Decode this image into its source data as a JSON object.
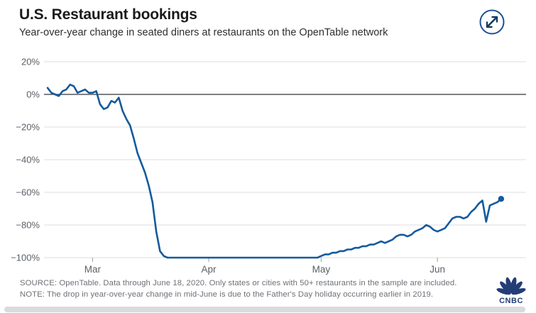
{
  "header": {
    "title": "U.S. Restaurant bookings",
    "subtitle": "Year-over-year change in seated diners at restaurants on the OpenTable network"
  },
  "chart_data": {
    "type": "line",
    "title": "U.S. Restaurant bookings",
    "subtitle": "Year-over-year change in seated diners at restaurants on the OpenTable network",
    "xlabel": "",
    "ylabel": "",
    "ylim": [
      -100,
      20
    ],
    "grid": true,
    "legend_position": "none",
    "y_ticks": [
      "20%",
      "0%",
      "−20%",
      "−40%",
      "−60%",
      "−80%",
      "−100%"
    ],
    "y_tick_values": [
      20,
      0,
      -20,
      -40,
      -60,
      -80,
      -100
    ],
    "x_ticks": [
      "Mar",
      "Apr",
      "May",
      "Jun"
    ],
    "x_range": [
      "Feb 18",
      "Jun 18"
    ],
    "line_color": "#155a9e",
    "grid_color": "#dcdcdc",
    "zero_line_color": "#55565a",
    "axis_text_color": "#5a5f66",
    "end_point_marker": true,
    "series": [
      {
        "name": "YoY change in seated diners (%)",
        "dates": [
          "Feb 18",
          "Feb 19",
          "Feb 20",
          "Feb 21",
          "Feb 22",
          "Feb 23",
          "Feb 24",
          "Feb 25",
          "Feb 26",
          "Feb 27",
          "Feb 28",
          "Feb 29",
          "Mar 1",
          "Mar 2",
          "Mar 3",
          "Mar 4",
          "Mar 5",
          "Mar 6",
          "Mar 7",
          "Mar 8",
          "Mar 9",
          "Mar 10",
          "Mar 11",
          "Mar 12",
          "Mar 13",
          "Mar 14",
          "Mar 15",
          "Mar 16",
          "Mar 17",
          "Mar 18",
          "Mar 19",
          "Mar 20",
          "Mar 21",
          "Mar 22",
          "Mar 23",
          "Mar 24",
          "Mar 25",
          "Mar 26",
          "Mar 27",
          "Mar 28",
          "Mar 29",
          "Mar 30",
          "Mar 31",
          "Apr 1",
          "Apr 2",
          "Apr 3",
          "Apr 4",
          "Apr 5",
          "Apr 6",
          "Apr 7",
          "Apr 8",
          "Apr 9",
          "Apr 10",
          "Apr 11",
          "Apr 12",
          "Apr 13",
          "Apr 14",
          "Apr 15",
          "Apr 16",
          "Apr 17",
          "Apr 18",
          "Apr 19",
          "Apr 20",
          "Apr 21",
          "Apr 22",
          "Apr 23",
          "Apr 24",
          "Apr 25",
          "Apr 26",
          "Apr 27",
          "Apr 28",
          "Apr 29",
          "Apr 30",
          "May 1",
          "May 2",
          "May 3",
          "May 4",
          "May 5",
          "May 6",
          "May 7",
          "May 8",
          "May 9",
          "May 10",
          "May 11",
          "May 12",
          "May 13",
          "May 14",
          "May 15",
          "May 16",
          "May 17",
          "May 18",
          "May 19",
          "May 20",
          "May 21",
          "May 22",
          "May 23",
          "May 24",
          "May 25",
          "May 26",
          "May 27",
          "May 28",
          "May 29",
          "May 30",
          "May 31",
          "Jun 1",
          "Jun 2",
          "Jun 3",
          "Jun 4",
          "Jun 5",
          "Jun 6",
          "Jun 7",
          "Jun 8",
          "Jun 9",
          "Jun 10",
          "Jun 11",
          "Jun 12",
          "Jun 13",
          "Jun 14",
          "Jun 15",
          "Jun 16",
          "Jun 17",
          "Jun 18"
        ],
        "values": [
          4,
          1,
          0,
          -1,
          2,
          3,
          6,
          5,
          1,
          2,
          3,
          1,
          1,
          2,
          -6,
          -9,
          -8,
          -4,
          -5,
          -2,
          -10,
          -15,
          -19,
          -27,
          -36,
          -42,
          -48,
          -56,
          -66,
          -84,
          -96,
          -99,
          -100,
          -100,
          -100,
          -100,
          -100,
          -100,
          -100,
          -100,
          -100,
          -100,
          -100,
          -100,
          -100,
          -100,
          -100,
          -100,
          -100,
          -100,
          -100,
          -100,
          -100,
          -100,
          -100,
          -100,
          -100,
          -100,
          -100,
          -100,
          -100,
          -100,
          -100,
          -100,
          -100,
          -100,
          -100,
          -100,
          -100,
          -100,
          -100,
          -100,
          -100,
          -99,
          -98,
          -98,
          -97,
          -97,
          -96,
          -96,
          -95,
          -95,
          -94,
          -94,
          -93,
          -93,
          -92,
          -92,
          -91,
          -90,
          -91,
          -90,
          -89,
          -87,
          -86,
          -86,
          -87,
          -86,
          -84,
          -83,
          -82,
          -80,
          -81,
          -83,
          -84,
          -83,
          -82,
          -79,
          -76,
          -75,
          -75,
          -76,
          -75,
          -72,
          -70,
          -67,
          -65,
          -78,
          -68,
          -67,
          -66,
          -64
        ]
      }
    ]
  },
  "footer": {
    "source": "SOURCE: OpenTable. Data through June 18, 2020. Only states or cities with 50+ restaurants in the sample are included.",
    "note": "NOTE: The drop in year-over-year change in mid-June is due to the Father's Day holiday occurring earlier in 2019.",
    "logo_text": "CNBC"
  },
  "colors": {
    "accent_navy": "#1d4f93",
    "logo_navy": "#233d77"
  }
}
